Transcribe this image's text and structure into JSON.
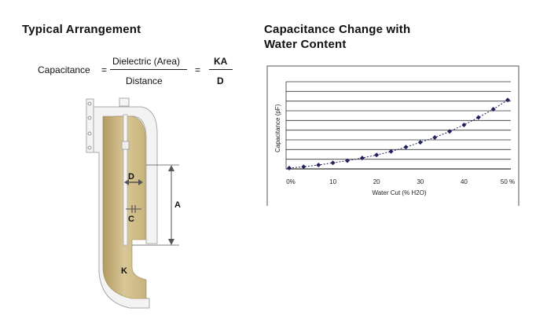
{
  "left_panel": {
    "title": "Typical Arrangement",
    "formula": {
      "lhs": "Capacitance",
      "eq1": "=",
      "numerator": "Dielectric (Area)",
      "denominator": "Distance",
      "eq2": "=",
      "numerator2": "KA",
      "denominator2": "D"
    },
    "probe_labels": {
      "d": "D",
      "c": "C",
      "a": "A",
      "k": "K"
    }
  },
  "right_panel": {
    "title_line1": "Capacitance Change with",
    "title_line2": "Water Content"
  },
  "chart_data": {
    "type": "line",
    "xlabel": "Water Cut (% H2O)",
    "ylabel": "Capacitance (pF)",
    "x_tick_labels": [
      "0%",
      "10",
      "20",
      "30",
      "40",
      "50 %"
    ],
    "x_ticks": [
      0,
      10,
      20,
      30,
      40,
      50
    ],
    "xlim": [
      0,
      50
    ],
    "ylim": [
      0,
      10
    ],
    "grid": "horizontal",
    "colors": {
      "line": "#23235e",
      "marker": "#23235e"
    },
    "series": [
      {
        "x": [
          0,
          3.3,
          6.7,
          10,
          13.3,
          16.7,
          20,
          23.3,
          26.7,
          30,
          33.3,
          36.7,
          40,
          43.3,
          46.7,
          50
        ],
        "y": [
          0.1,
          0.25,
          0.45,
          0.7,
          0.95,
          1.25,
          1.6,
          2.0,
          2.5,
          3.05,
          3.6,
          4.3,
          5.05,
          5.9,
          6.85,
          7.9
        ]
      }
    ]
  }
}
